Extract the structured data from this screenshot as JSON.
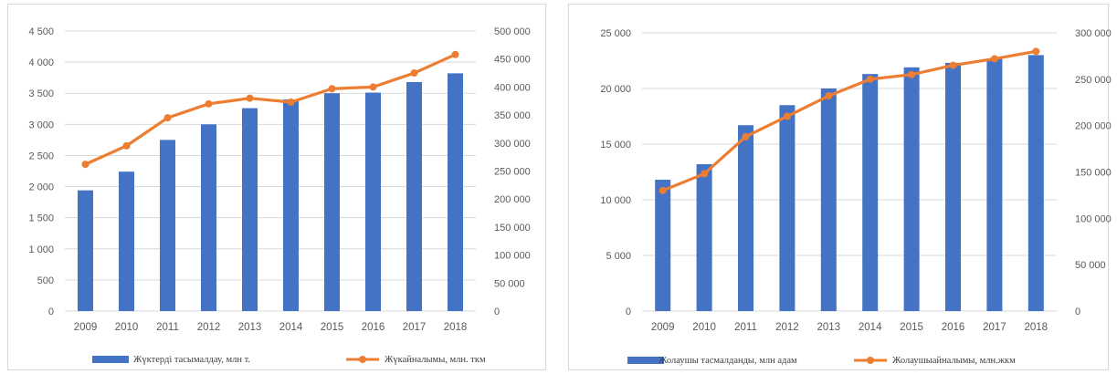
{
  "chart_data": [
    {
      "type": "bar+line",
      "categories": [
        "2009",
        "2010",
        "2011",
        "2012",
        "2013",
        "2014",
        "2015",
        "2016",
        "2017",
        "2018"
      ],
      "series": [
        {
          "name": "Жүктерді тасымалдау, млн т.",
          "kind": "bar",
          "axis": "left",
          "values": [
            1940,
            2240,
            2750,
            3000,
            3260,
            3400,
            3500,
            3510,
            3680,
            3820
          ]
        },
        {
          "name": "Жүкайналымы, млн. ткм",
          "kind": "line",
          "axis": "right",
          "values": [
            262000,
            295000,
            345000,
            370000,
            380000,
            373000,
            397000,
            400000,
            425000,
            458000
          ]
        }
      ],
      "y_left": {
        "min": 0,
        "max": 4500,
        "ticks": [
          0,
          500,
          1000,
          1500,
          2000,
          2500,
          3000,
          3500,
          4000,
          4500
        ],
        "tick_labels": [
          "0",
          "500",
          "1 000",
          "1 500",
          "2 000",
          "2 500",
          "3 000",
          "3 500",
          "4 000",
          "4 500"
        ]
      },
      "y_right": {
        "min": 0,
        "max": 500000,
        "ticks": [
          0,
          50000,
          100000,
          150000,
          200000,
          250000,
          300000,
          350000,
          400000,
          450000,
          500000
        ],
        "tick_labels": [
          "0",
          "50 000",
          "100 000",
          "150 000",
          "200 000",
          "250 000",
          "300 000",
          "350 000",
          "400 000",
          "450 000",
          "500 000"
        ]
      },
      "grid": true,
      "legend_position": "bottom"
    },
    {
      "type": "bar+line",
      "categories": [
        "2009",
        "2010",
        "2011",
        "2012",
        "2013",
        "2014",
        "2015",
        "2016",
        "2017",
        "2018"
      ],
      "series": [
        {
          "name": "Жолаушы тасмалданды, млн адам",
          "kind": "bar",
          "axis": "left",
          "values": [
            11800,
            13200,
            16700,
            18500,
            20000,
            21300,
            21900,
            22300,
            22700,
            23000
          ]
        },
        {
          "name": "Жолаушыайналымы, млн.жкм",
          "kind": "line",
          "axis": "right",
          "values": [
            130000,
            148000,
            188000,
            210000,
            232000,
            250000,
            255000,
            265000,
            272000,
            280000
          ]
        }
      ],
      "y_left": {
        "min": 0,
        "max": 25000,
        "ticks": [
          0,
          5000,
          10000,
          15000,
          20000,
          25000
        ],
        "tick_labels": [
          "0",
          "5 000",
          "10 000",
          "15 000",
          "20 000",
          "25 000"
        ]
      },
      "y_right": {
        "min": 0,
        "max": 300000,
        "ticks": [
          0,
          50000,
          100000,
          150000,
          200000,
          250000,
          300000
        ],
        "tick_labels": [
          "0",
          "50 000",
          "100 000",
          "150 000",
          "200 000",
          "250 000",
          "300 000"
        ]
      },
      "grid": true,
      "legend_position": "bottom"
    }
  ],
  "colors": {
    "bar": "#4472c4",
    "line": "#ed7d31",
    "grid": "#d9d9d9",
    "axis_text": "#595959"
  }
}
